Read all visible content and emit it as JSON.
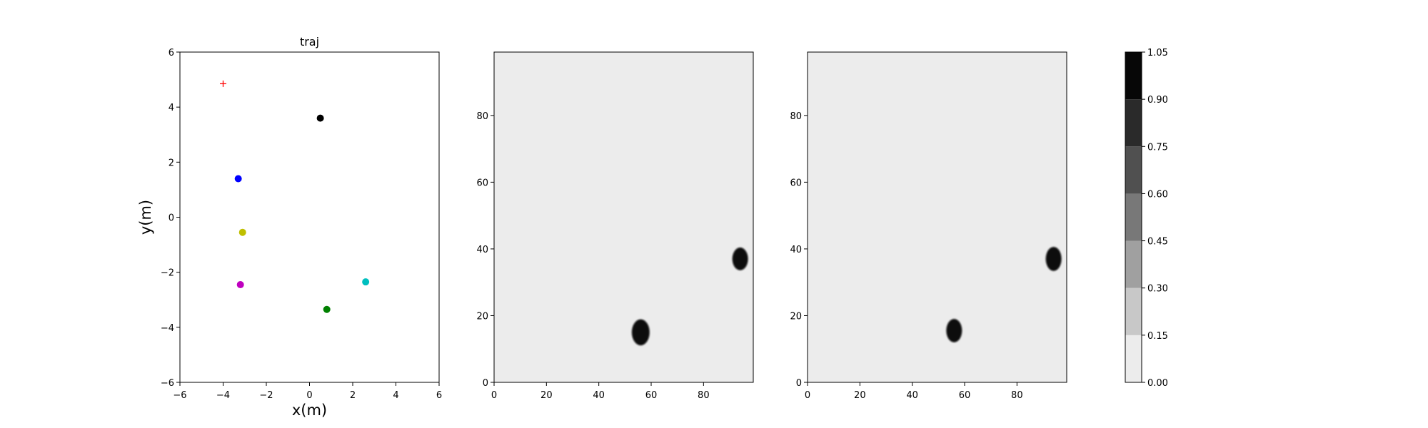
{
  "chart_data": [
    {
      "type": "scatter",
      "title": "traj",
      "xlabel": "x(m)",
      "ylabel": "y(m)",
      "xlim": [
        -6,
        6
      ],
      "ylim": [
        -6,
        6
      ],
      "xticks": [
        -6,
        -4,
        -2,
        0,
        2,
        4,
        6
      ],
      "yticks": [
        -6,
        -4,
        -2,
        0,
        2,
        4,
        6
      ],
      "grid": false,
      "points": [
        {
          "x": -4.0,
          "y": 4.85,
          "marker": "plus",
          "color": "#ff0000"
        },
        {
          "x": 0.5,
          "y": 3.6,
          "marker": "circle",
          "color": "#000000"
        },
        {
          "x": -3.3,
          "y": 1.4,
          "marker": "circle",
          "color": "#0000ff"
        },
        {
          "x": -3.1,
          "y": -0.55,
          "marker": "circle",
          "color": "#bfbf00"
        },
        {
          "x": -3.2,
          "y": -2.45,
          "marker": "circle",
          "color": "#bf00bf"
        },
        {
          "x": 2.6,
          "y": -2.35,
          "marker": "circle",
          "color": "#00bfbf"
        },
        {
          "x": 0.8,
          "y": -3.35,
          "marker": "circle",
          "color": "#008000"
        }
      ]
    },
    {
      "type": "heatmap",
      "title": "",
      "xlim": [
        0,
        99
      ],
      "ylim": [
        0,
        99
      ],
      "xticks": [
        0,
        20,
        40,
        60,
        80
      ],
      "yticks": [
        0,
        20,
        40,
        60,
        80
      ],
      "background_value": 0.05,
      "blobs": [
        {
          "x": 56,
          "y": 15,
          "rx": 3.4,
          "ry": 3.9,
          "value": 1.0
        },
        {
          "x": 94,
          "y": 37,
          "rx": 3.0,
          "ry": 3.4,
          "value": 1.0
        }
      ]
    },
    {
      "type": "heatmap",
      "title": "",
      "xlim": [
        0,
        99
      ],
      "ylim": [
        0,
        99
      ],
      "xticks": [
        0,
        20,
        40,
        60,
        80
      ],
      "yticks": [
        0,
        20,
        40,
        60,
        80
      ],
      "background_value": 0.05,
      "blobs": [
        {
          "x": 56,
          "y": 15.5,
          "rx": 3.0,
          "ry": 3.5,
          "value": 1.0
        },
        {
          "x": 94,
          "y": 37,
          "rx": 3.0,
          "ry": 3.6,
          "value": 1.0
        }
      ]
    }
  ],
  "colorbar": {
    "levels": [
      0.0,
      0.15,
      0.3,
      0.45,
      0.6,
      0.75,
      0.9,
      1.05
    ],
    "tick_labels": [
      "0.00",
      "0.15",
      "0.30",
      "0.45",
      "0.60",
      "0.75",
      "0.90",
      "1.05"
    ],
    "colors": [
      "#ececec",
      "#c8c8c8",
      "#a0a0a0",
      "#787878",
      "#505050",
      "#2a2a2a",
      "#070707"
    ]
  }
}
